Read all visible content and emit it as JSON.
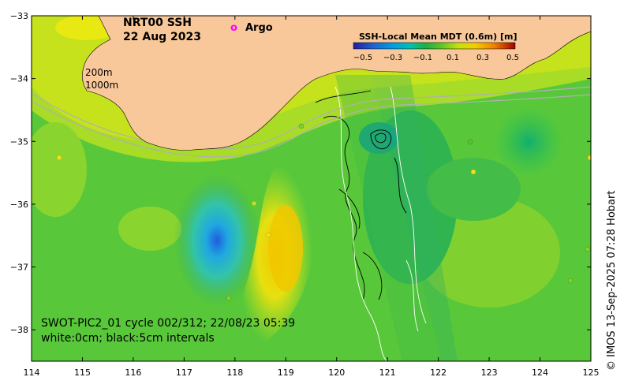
{
  "product": "NRT00 SSH",
  "date": "22 Aug 2023",
  "legend": {
    "argo_symbol": "o",
    "argo_label": "Argo",
    "argo_color": "#ff00ff"
  },
  "colorbar": {
    "title": "SSH-Local Mean MDT (0.6m) [m]",
    "ticks": [
      "−0.5",
      "−0.3",
      "−0.1",
      "0.1",
      "0.3",
      "0.5"
    ],
    "colors": [
      "#1f1fa0",
      "#2060d0",
      "#00a0e0",
      "#00c0b0",
      "#20b040",
      "#30c030",
      "#80d020",
      "#c8e010",
      "#f0d000",
      "#f08000",
      "#e02000",
      "#a00000"
    ]
  },
  "isobaths": [
    "200m",
    "1000m"
  ],
  "swot": {
    "pass_info": "SWOT-PIC2_01 cycle 002/312; 22/08/23 05:39",
    "contour_info": "white:0cm; black:5cm intervals"
  },
  "credit": "© IMOS 13-Sep-2025 07:28 Hobart",
  "axes": {
    "x_ticks": [
      "114",
      "115",
      "116",
      "117",
      "118",
      "119",
      "120",
      "121",
      "122",
      "123",
      "124",
      "125"
    ],
    "y_ticks": [
      "−33",
      "−34",
      "−35",
      "−36",
      "−37",
      "−38"
    ],
    "lon_range": [
      114,
      125
    ],
    "lat_range": [
      -38.5,
      -33
    ]
  },
  "colors": {
    "land": "#f9c89a",
    "sea_base": "#66cc33",
    "sea_light": "#aadd22",
    "low_anomaly": "#33bbcc",
    "high_anomaly": "#f0d000"
  }
}
